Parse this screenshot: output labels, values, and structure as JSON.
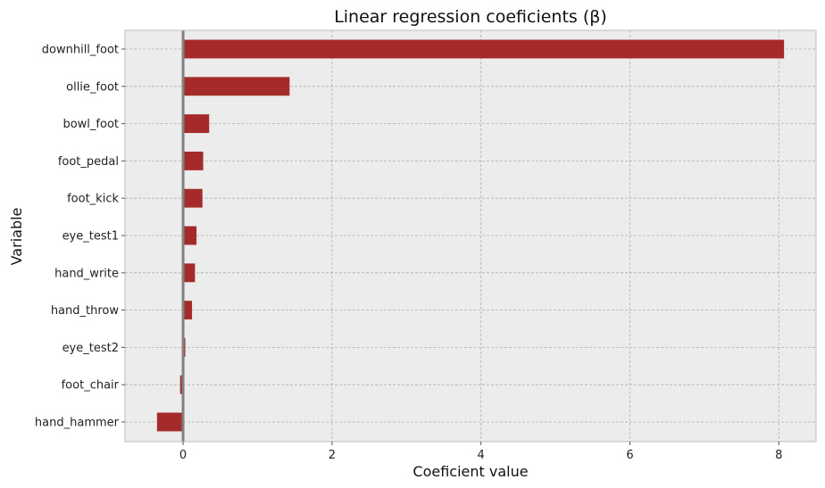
{
  "chart_data": {
    "type": "bar",
    "orientation": "horizontal",
    "title": "Linear regression coeficients (β)",
    "xlabel": "Coeficient value",
    "ylabel": "Variable",
    "xlim": [
      -0.78,
      8.5
    ],
    "xticks": [
      0,
      2,
      4,
      6,
      8
    ],
    "grid": true,
    "zero_line": true,
    "categories": [
      "downhill_foot",
      "ollie_foot",
      "bowl_foot",
      "foot_pedal",
      "foot_kick",
      "eye_test1",
      "hand_write",
      "hand_throw",
      "eye_test2",
      "foot_chair",
      "hand_hammer"
    ],
    "values": [
      8.07,
      1.43,
      0.35,
      0.27,
      0.26,
      0.18,
      0.16,
      0.12,
      0.03,
      -0.04,
      -0.35
    ],
    "colors": {
      "bar": "#a52a2a",
      "plot_bg": "#ececec",
      "grid": "#b0b0b0",
      "zero_line": "#808080"
    }
  }
}
